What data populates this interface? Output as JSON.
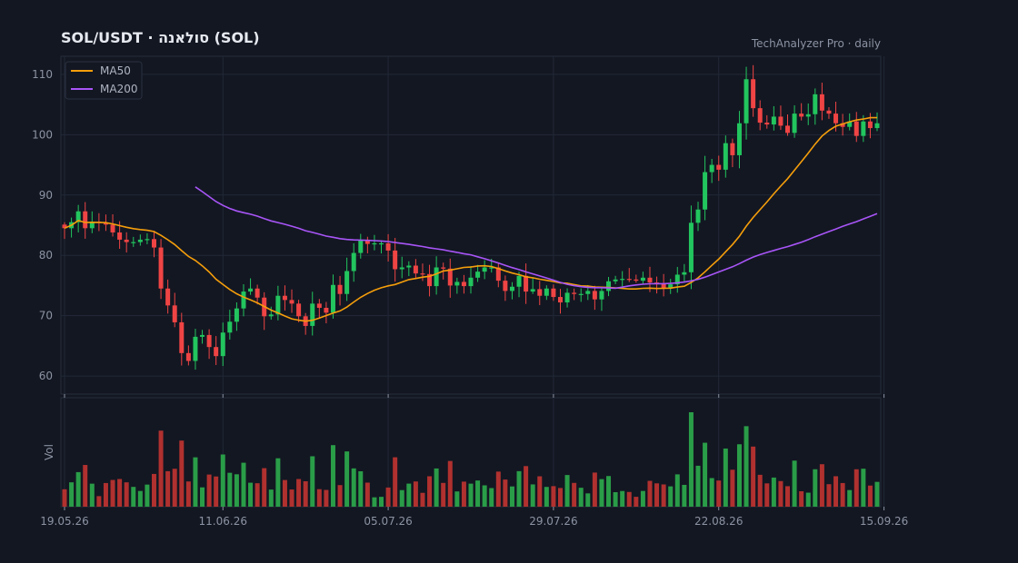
{
  "header": {
    "title": "SOL/USDT  ·  סולאנה (SOL)",
    "source": "TechAnalyzer Pro · daily"
  },
  "colors": {
    "background": "#131722",
    "grid": "#222837",
    "up": "#22c55e",
    "down": "#ef4444",
    "up_volume": "#2a9d48",
    "down_volume": "#b0312f",
    "ma50": "#f59e0b",
    "ma200": "#a855f7"
  },
  "chart_data": {
    "type": "candlestick",
    "y_ticks": [
      "60",
      "70",
      "80",
      "90",
      "100",
      "110"
    ],
    "ylim": [
      57,
      113
    ],
    "x_tick_labels": [
      "19.05.26",
      "11.06.26",
      "05.07.26",
      "29.07.26",
      "22.08.26",
      "15.09.26"
    ],
    "x_tick_index": [
      0,
      23,
      47,
      71,
      95,
      119
    ],
    "volume_label": "Vol",
    "legend": [
      {
        "name": "MA50",
        "color": "#f59e0b"
      },
      {
        "name": "MA200",
        "color": "#a855f7"
      }
    ],
    "grid": true,
    "legend_position": "top-left",
    "close": [
      84.5,
      85.5,
      87.3,
      84.5,
      85.6,
      85.4,
      85.1,
      83.8,
      82.6,
      82.2,
      82.2,
      82.6,
      82.7,
      81.3,
      74.5,
      71.7,
      68.9,
      63.8,
      62.5,
      66.5,
      66.8,
      64.8,
      63.3,
      67.2,
      69.0,
      71.2,
      74.0,
      74.5,
      73.0,
      69.9,
      70.2,
      73.3,
      72.6,
      72.0,
      69.9,
      68.3,
      72.0,
      71.3,
      70.5,
      75.1,
      73.6,
      77.4,
      80.4,
      82.6,
      81.9,
      82.0,
      82.0,
      80.8,
      77.7,
      78.0,
      78.3,
      77.0,
      76.9,
      74.9,
      78.0,
      77.8,
      75.0,
      75.6,
      74.9,
      76.3,
      77.3,
      78.0,
      78.0,
      75.8,
      74.1,
      74.8,
      76.6,
      74.0,
      74.4,
      73.3,
      74.5,
      73.1,
      72.2,
      73.8,
      73.6,
      73.6,
      74.1,
      72.7,
      74.1,
      75.7,
      76.0,
      76.1,
      76.0,
      75.8,
      76.3,
      75.5,
      75.3,
      74.6,
      75.2,
      76.8,
      77.2,
      85.4,
      87.6,
      93.8,
      95.0,
      94.2,
      98.6,
      96.6,
      101.9,
      109.2,
      104.4,
      102.0,
      101.7,
      103.0,
      101.5,
      100.3,
      103.5,
      103.0,
      103.4,
      106.7,
      104.0,
      103.5,
      101.9,
      101.3,
      102.2,
      99.8,
      102.2,
      101.1,
      101.9
    ]
  }
}
